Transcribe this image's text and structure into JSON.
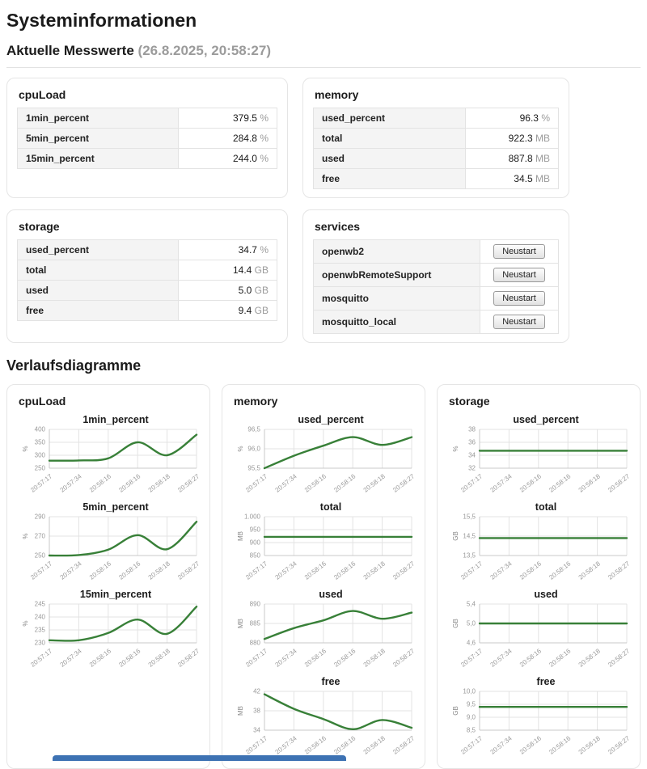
{
  "page": {
    "title": "Systeminformationen",
    "section_current": {
      "title": "Aktuelle Messwerte",
      "timestamp": "(26.8.2025, 20:58:27)"
    },
    "section_charts": {
      "title": "Verlaufsdiagramme"
    }
  },
  "colors": {
    "line": "#388038",
    "grid": "#e3e3e3",
    "axis": "#c8c8c8",
    "tick": "#999999",
    "unit": "#8a8a8a",
    "bottom_bar": "#3d72b3"
  },
  "cards": [
    {
      "id": "cpuLoad",
      "title": "cpuLoad",
      "rows": [
        {
          "label": "1min_percent",
          "value": "379.5",
          "unit": "%"
        },
        {
          "label": "5min_percent",
          "value": "284.8",
          "unit": "%"
        },
        {
          "label": "15min_percent",
          "value": "244.0",
          "unit": "%"
        }
      ]
    },
    {
      "id": "memory",
      "title": "memory",
      "rows": [
        {
          "label": "used_percent",
          "value": "96.3",
          "unit": "%"
        },
        {
          "label": "total",
          "value": "922.3",
          "unit": "MB"
        },
        {
          "label": "used",
          "value": "887.8",
          "unit": "MB"
        },
        {
          "label": "free",
          "value": "34.5",
          "unit": "MB"
        }
      ]
    },
    {
      "id": "storage",
      "title": "storage",
      "rows": [
        {
          "label": "used_percent",
          "value": "34.7",
          "unit": "%"
        },
        {
          "label": "total",
          "value": "14.4",
          "unit": "GB"
        },
        {
          "label": "used",
          "value": "5.0",
          "unit": "GB"
        },
        {
          "label": "free",
          "value": "9.4",
          "unit": "GB"
        }
      ]
    },
    {
      "id": "services",
      "title": "services",
      "rows": [
        {
          "label": "openwb2",
          "action": "Neustart"
        },
        {
          "label": "openwbRemoteSupport",
          "action": "Neustart"
        },
        {
          "label": "mosquitto",
          "action": "Neustart"
        },
        {
          "label": "mosquitto_local",
          "action": "Neustart"
        }
      ]
    }
  ],
  "chart_data": {
    "type": "line",
    "legend": "none",
    "grid": true,
    "x_labels": [
      "20:57:17",
      "20:57:34",
      "20:58:16",
      "20:58:16",
      "20:58:18",
      "20:58:27"
    ],
    "cards": [
      {
        "title": "cpuLoad",
        "charts": [
          {
            "title": "1min_percent",
            "ylabel": "%",
            "values": [
              279,
              280,
              288,
              350,
              300,
              379.5
            ],
            "ylim": [
              250,
              400
            ],
            "yticks": [
              250,
              300,
              350,
              400
            ],
            "ytick_labels": [
              "250",
              "300",
              "350",
              "400"
            ]
          },
          {
            "title": "5min_percent",
            "ylabel": "%",
            "values": [
              250,
              250.5,
              256,
              271,
              256.5,
              284.8
            ],
            "ylim": [
              250,
              290
            ],
            "yticks": [
              250,
              270,
              290
            ],
            "ytick_labels": [
              "250",
              "270",
              "290"
            ]
          },
          {
            "title": "15min_percent",
            "ylabel": "%",
            "values": [
              231,
              231,
              233.8,
              239,
              233.5,
              244
            ],
            "ylim": [
              230,
              245
            ],
            "yticks": [
              230,
              235,
              240,
              245
            ],
            "ytick_labels": [
              "230",
              "235",
              "240",
              "245"
            ]
          }
        ]
      },
      {
        "title": "memory",
        "charts": [
          {
            "title": "used_percent",
            "ylabel": "%",
            "values": [
              95.5,
              95.82,
              96.08,
              96.3,
              96.1,
              96.3
            ],
            "ylim": [
              95.5,
              96.5
            ],
            "yticks": [
              95.5,
              96.0,
              96.5
            ],
            "ytick_labels": [
              "95,5",
              "96,0",
              "96,5"
            ]
          },
          {
            "title": "total",
            "ylabel": "MB",
            "values": [
              922.3,
              922.3,
              922.3,
              922.3,
              922.3,
              922.3
            ],
            "ylim": [
              850,
              1000
            ],
            "yticks": [
              850,
              900,
              950,
              1000
            ],
            "ytick_labels": [
              "850",
              "900",
              "950",
              "1.000"
            ]
          },
          {
            "title": "used",
            "ylabel": "MB",
            "values": [
              881,
              883.8,
              885.8,
              888.2,
              886.2,
              887.8
            ],
            "ylim": [
              880,
              890
            ],
            "yticks": [
              880,
              885,
              890
            ],
            "ytick_labels": [
              "880",
              "885",
              "890"
            ]
          },
          {
            "title": "free",
            "ylabel": "MB",
            "values": [
              41.4,
              38.4,
              36.3,
              34.2,
              36.1,
              34.5
            ],
            "ylim": [
              34,
              42
            ],
            "yticks": [
              34,
              38,
              42
            ],
            "ytick_labels": [
              "34",
              "38",
              "42"
            ]
          }
        ]
      },
      {
        "title": "storage",
        "charts": [
          {
            "title": "used_percent",
            "ylabel": "%",
            "values": [
              34.7,
              34.7,
              34.7,
              34.7,
              34.7,
              34.7
            ],
            "ylim": [
              32,
              38
            ],
            "yticks": [
              32,
              34,
              36,
              38
            ],
            "ytick_labels": [
              "32",
              "34",
              "36",
              "38"
            ]
          },
          {
            "title": "total",
            "ylabel": "GB",
            "values": [
              14.4,
              14.4,
              14.4,
              14.4,
              14.4,
              14.4
            ],
            "ylim": [
              13.5,
              15.5
            ],
            "yticks": [
              13.5,
              14.5,
              15.5
            ],
            "ytick_labels": [
              "13,5",
              "14,5",
              "15,5"
            ]
          },
          {
            "title": "used",
            "ylabel": "GB",
            "values": [
              5.0,
              5.0,
              5.0,
              5.0,
              5.0,
              5.0
            ],
            "ylim": [
              4.6,
              5.4
            ],
            "yticks": [
              4.6,
              5.0,
              5.4
            ],
            "ytick_labels": [
              "4,6",
              "5,0",
              "5,4"
            ]
          },
          {
            "title": "free",
            "ylabel": "GB",
            "values": [
              9.4,
              9.4,
              9.4,
              9.4,
              9.4,
              9.4
            ],
            "ylim": [
              8.5,
              10.0
            ],
            "yticks": [
              8.5,
              9.0,
              9.5,
              10.0
            ],
            "ytick_labels": [
              "8,5",
              "9,0",
              "9,5",
              "10,0"
            ]
          }
        ]
      }
    ]
  }
}
